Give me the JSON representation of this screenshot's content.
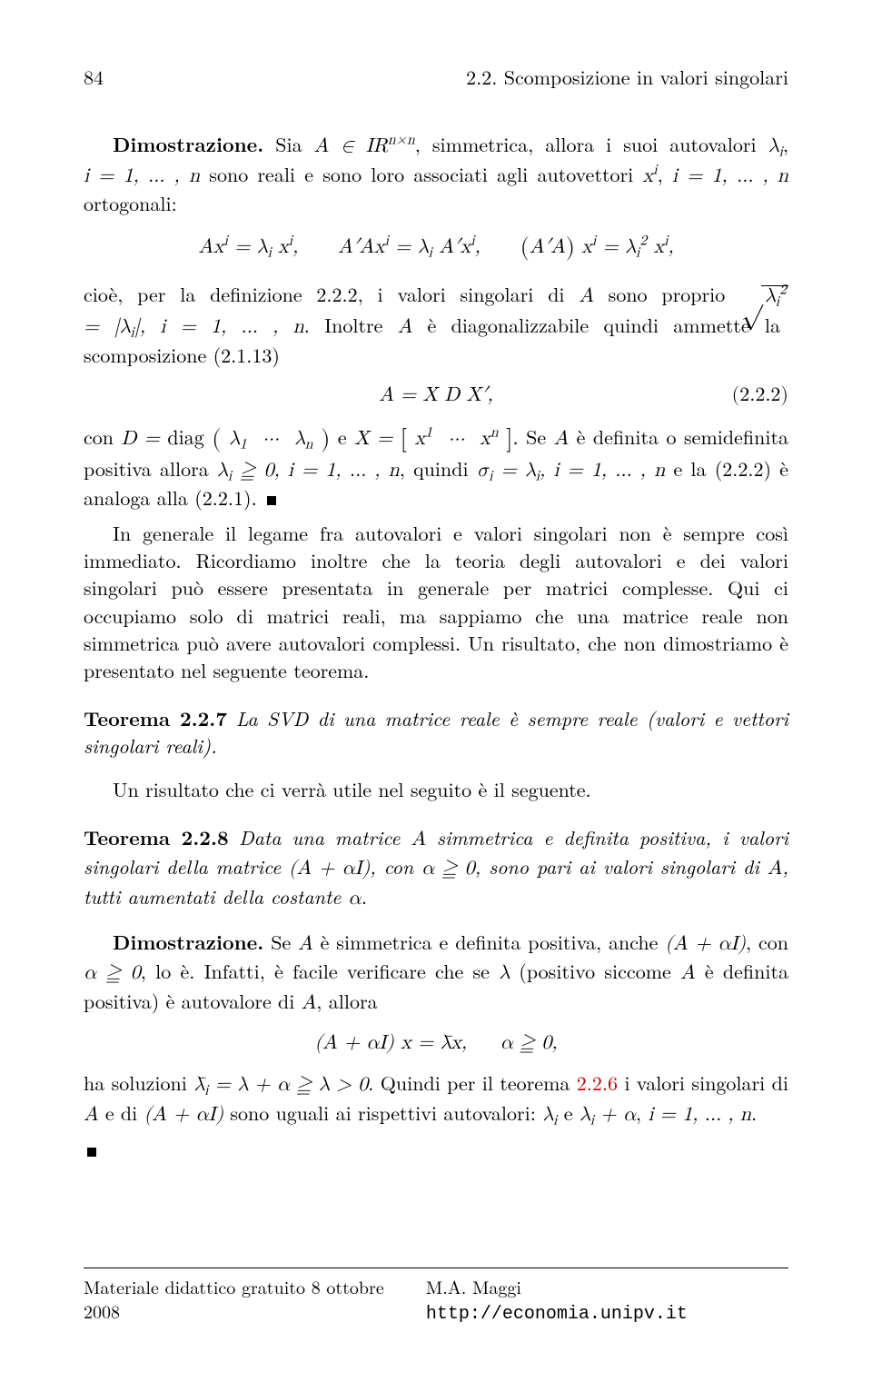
{
  "page_number": "84",
  "section_header": "2.2. Scomposizione in valori singolari",
  "proof_label": "Dimostrazione.",
  "p1_a": " Sia ",
  "p1_m1": "A ∈ IR",
  "p1_exp1": "n×n",
  "p1_b": ", simmetrica, allora i suoi autovalori ",
  "p1_m2": "λ",
  "p1_sub_i": "i",
  "p1_c": ", ",
  "p1_m3": "i = 1, … , n",
  "p1_d": " sono reali e sono loro associati agli autovettori ",
  "p1_m4": "x",
  "p1_sup_i": "i",
  "p1_e": ", ",
  "p1_m5": "i = 1, … , n",
  "p1_f": " ortogonali:",
  "disp1": "Ax<sup>i</sup> = λ<sub>i</sub> x<sup>i</sup>,&nbsp;&nbsp;&nbsp;&nbsp;&nbsp; A′Ax<sup>i</sup> = λ<sub>i</sub> A′x<sup>i</sup>,&nbsp;&nbsp;&nbsp;&nbsp;&nbsp; <span class='big-paren'>(</span>A′A<span class='big-paren'>)</span> x<sup>i</sup> = λ<sub>i</sub><sup>2</sup> x<sup>i</sup>,",
  "p2_a": "cioè, per la definizione 2.2.2, i valori singolari di ",
  "p2_m1": "A",
  "p2_b": " sono proprio ",
  "p2_sqrt": "λ<sub>i</sub><sup>2</sup>",
  "p2_c": " = |λ<sub>i</sub>|, ",
  "p2_m2": "i = 1, … , n",
  "p2_d": ". Inoltre ",
  "p2_m3": "A",
  "p2_e": " è diagonalizzabile quindi ammette la scomposizione (2.1.13)",
  "disp2": "A = X D X′,",
  "eq2num": "(2.2.2)",
  "p3_a": "con ",
  "p3_m1": "D = <span class='rm'>diag</span> <span class='big-paren'>(</span>&nbsp;λ<sub>1</sub>&nbsp;&nbsp;···&nbsp;&nbsp;λ<sub>n</sub>&nbsp;<span class='big-paren'>)</span>",
  "p3_b": " e ",
  "p3_m2": "X = <span class='big-brack'>[</span>&nbsp;x<sup>1</sup>&nbsp;&nbsp;···&nbsp;&nbsp;x<sup>n</sup>&nbsp;<span class='big-brack'>]</span>",
  "p3_c": ". Se ",
  "p3_m3": "A",
  "p3_d": " è definita o semidefinita positiva allora ",
  "p3_m4": "λ<sub>i</sub> ≧ 0, i = 1, … , n",
  "p3_e": ", quindi ",
  "p3_m5": "σ<sub>i</sub> = λ<sub>i</sub>, i = 1, … , n",
  "p3_f": " e la (2.2.2) è analoga alla (2.2.1).",
  "p4": "In generale il legame fra autovalori e valori singolari non è sempre così immediato. Ricordiamo inoltre che la teoria degli autovalori e dei valori singolari può essere presentata in generale per matrici complesse. Qui ci occupiamo solo di matrici reali, ma sappiamo che una matrice reale non simmetrica può avere autovalori complessi. Un risultato, che non dimostriamo è presentato nel seguente teorema.",
  "thm227_label": "Teorema 2.2.7",
  "thm227_stmt": "La SVD di una matrice reale è sempre reale (valori e vettori singolari reali).",
  "p5": "Un risultato che ci verrà utile nel seguito è il seguente.",
  "thm228_label": "Teorema 2.2.8",
  "thm228_a": "Data una matrice ",
  "thm228_m1": "A",
  "thm228_b": " simmetrica e definita positiva, i valori singolari della matrice ",
  "thm228_m2": "(A + αI)",
  "thm228_c": ", con ",
  "thm228_m3": "α ≧ 0",
  "thm228_d": ", sono pari ai valori singolari di ",
  "thm228_m4": "A",
  "thm228_e": ", tutti aumentati della costante ",
  "thm228_m5": "α",
  "thm228_f": ".",
  "proof2_label": "Dimostrazione.",
  "p6_a": " Se ",
  "p6_m1": "A",
  "p6_b": " è simmetrica e definita positiva, anche ",
  "p6_m2": "(A + αI)",
  "p6_c": ", con ",
  "p6_m3": "α ≧ 0",
  "p6_d": ", lo è. Infatti, è facile verificare che se ",
  "p6_m4": "λ",
  "p6_e": " (positivo siccome ",
  "p6_m5": "A",
  "p6_f": " è definita positiva) è autovalore di ",
  "p6_m6": "A",
  "p6_g": ", allora",
  "disp3": "(A + αI) x = λ̄x,&nbsp;&nbsp;&nbsp;&nbsp;&nbsp;α ≧ 0,",
  "p7_a": "ha soluzioni ",
  "p7_m1": "λ̄<sub>i</sub> = λ + α ≧ λ &gt; 0",
  "p7_b": ". Quindi per il teorema ",
  "p7_ref": "2.2.6",
  "p7_c": " i valori singolari di ",
  "p7_m2": "A",
  "p7_d": " e di ",
  "p7_m3": "(A + αI)",
  "p7_e": " sono uguali ai rispettivi autovalori: ",
  "p7_m4": "λ<sub>i</sub>",
  "p7_f": " e ",
  "p7_m5": "λ<sub>i</sub> + α",
  "p7_g": ", ",
  "p7_m6": "i = 1, … , n",
  "p7_h": ".",
  "footer_left": "Materiale didattico gratuito 8 ottobre 2008",
  "footer_author": "M.A. Maggi ",
  "footer_url": "http://economia.unipv.it"
}
